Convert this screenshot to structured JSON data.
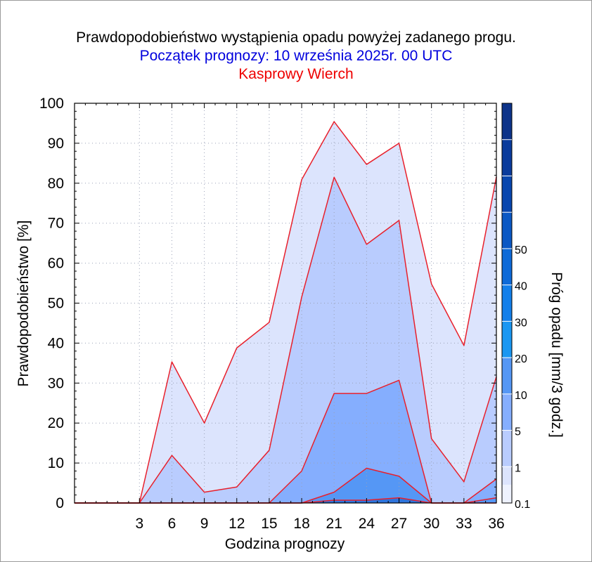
{
  "chart_data": {
    "type": "area",
    "title": "Prawdopodobieństwo wystąpienia opadu powyżej zadanego progu.",
    "subtitle": "Początek prognozy: 10 września 2025r. 00 UTC",
    "location": "Kasprowy Wierch",
    "xlabel": "Godzina prognozy",
    "ylabel": "Prawdopodobieństwo [%]",
    "colorbar_label": "Próg opadu [mm/3 godz.]",
    "xlim": [
      -3,
      36
    ],
    "ylim": [
      0,
      100
    ],
    "x_ticks": [
      3,
      6,
      9,
      12,
      15,
      18,
      21,
      24,
      27,
      30,
      33,
      36
    ],
    "y_ticks": [
      0,
      10,
      20,
      30,
      40,
      50,
      60,
      70,
      80,
      90,
      100
    ],
    "x": [
      -3,
      0,
      3,
      6,
      9,
      12,
      15,
      18,
      21,
      24,
      27,
      30,
      33,
      36
    ],
    "series": [
      {
        "threshold": "0.1",
        "color": "#dce4fd",
        "values": [
          0,
          0,
          0,
          35.3,
          20,
          38.8,
          45.2,
          80.9,
          95.4,
          84.7,
          90,
          54.8,
          39.4,
          81.6
        ]
      },
      {
        "threshold": "1",
        "color": "#b9ccfe",
        "values": [
          0,
          0,
          0,
          11.9,
          2.7,
          4,
          13.2,
          51.5,
          81.5,
          64.7,
          70.7,
          16.1,
          5.3,
          31.6
        ]
      },
      {
        "threshold": "5",
        "color": "#85aefe",
        "values": [
          0,
          0,
          0,
          0,
          0,
          0,
          0,
          8,
          27.4,
          27.4,
          30.7,
          0,
          0,
          6
        ]
      },
      {
        "threshold": "10",
        "color": "#5597f5",
        "values": [
          0,
          0,
          0,
          0,
          0,
          0,
          0,
          0,
          2.7,
          8.7,
          6.7,
          0,
          0,
          1.3
        ]
      },
      {
        "threshold": "20",
        "color": "#2e74dc",
        "values": [
          0,
          0,
          0,
          0,
          0,
          0,
          0,
          0,
          0.7,
          0.7,
          1.3,
          0,
          0,
          0
        ]
      }
    ],
    "grid": true,
    "colorbar": {
      "labels": [
        "0.1",
        "1",
        "5",
        "10",
        "20",
        "30",
        "40",
        "50"
      ],
      "bands": [
        {
          "color": "#eef2fe",
          "from": 0,
          "to": 0.5
        },
        {
          "color": "#dce4fd",
          "from": 0.5,
          "to": 1
        },
        {
          "color": "#b9ccfe",
          "from": 1,
          "to": 2
        },
        {
          "color": "#85aefe",
          "from": 2,
          "to": 3
        },
        {
          "color": "#5597f5",
          "from": 3,
          "to": 4
        },
        {
          "color": "#1a97f2",
          "from": 4,
          "to": 5
        },
        {
          "color": "#137fea",
          "from": 5,
          "to": 6
        },
        {
          "color": "#0e6ad8",
          "from": 6,
          "to": 7
        },
        {
          "color": "#0b58c4",
          "from": 7,
          "to": 8
        },
        {
          "color": "#0846ae",
          "from": 8,
          "to": 9
        },
        {
          "color": "#0a3b9c",
          "from": 9,
          "to": 10
        },
        {
          "color": "#0d3389",
          "from": 10,
          "to": 11
        }
      ],
      "label_positions": [
        0,
        1,
        2,
        3,
        4,
        5,
        6,
        7
      ]
    },
    "line_color": "#e8202c",
    "grid_color": "#9aa2b8"
  }
}
